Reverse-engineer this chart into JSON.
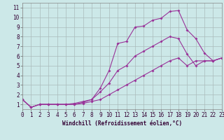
{
  "xlabel": "Windchill (Refroidissement éolien,°C)",
  "bg_color": "#cce8e8",
  "grid_color": "#aabbbb",
  "line_color": "#993399",
  "xlim": [
    0,
    23
  ],
  "ylim": [
    0.5,
    11.5
  ],
  "xticks": [
    0,
    1,
    2,
    3,
    4,
    5,
    6,
    7,
    8,
    9,
    10,
    11,
    12,
    13,
    14,
    15,
    16,
    17,
    18,
    19,
    20,
    21,
    22,
    23
  ],
  "yticks": [
    1,
    2,
    3,
    4,
    5,
    6,
    7,
    8,
    9,
    10,
    11
  ],
  "line1_x": [
    0,
    1,
    2,
    3,
    4,
    5,
    6,
    7,
    8,
    9,
    10,
    11,
    12,
    13,
    14,
    15,
    16,
    17,
    18,
    19,
    20,
    21,
    22,
    23
  ],
  "line1_y": [
    1.5,
    0.7,
    1.0,
    1.0,
    1.0,
    1.0,
    1.0,
    1.2,
    1.5,
    2.7,
    4.5,
    7.3,
    7.5,
    9.0,
    9.1,
    9.7,
    9.9,
    10.6,
    10.7,
    8.7,
    7.8,
    6.3,
    5.5,
    5.8
  ],
  "line2_x": [
    0,
    1,
    2,
    3,
    4,
    5,
    6,
    7,
    8,
    9,
    10,
    11,
    12,
    13,
    14,
    15,
    16,
    17,
    18,
    19,
    20,
    21,
    22,
    23
  ],
  "line2_y": [
    1.5,
    0.7,
    1.0,
    1.0,
    1.0,
    1.0,
    1.1,
    1.3,
    1.5,
    2.3,
    3.2,
    4.5,
    5.0,
    6.0,
    6.5,
    7.0,
    7.5,
    8.0,
    7.8,
    6.2,
    5.0,
    5.5,
    5.5,
    5.8
  ],
  "line3_x": [
    0,
    1,
    2,
    3,
    4,
    5,
    6,
    7,
    8,
    9,
    10,
    11,
    12,
    13,
    14,
    15,
    16,
    17,
    18,
    19,
    20,
    21,
    22,
    23
  ],
  "line3_y": [
    1.5,
    0.7,
    1.0,
    1.0,
    1.0,
    1.0,
    1.0,
    1.1,
    1.3,
    1.5,
    2.0,
    2.5,
    3.0,
    3.5,
    4.0,
    4.5,
    5.0,
    5.5,
    5.8,
    5.0,
    5.5,
    5.5,
    5.5,
    5.8
  ],
  "marker_size": 2,
  "line_width": 0.8,
  "tick_fontsize": 5.5,
  "xlabel_fontsize": 5.5
}
